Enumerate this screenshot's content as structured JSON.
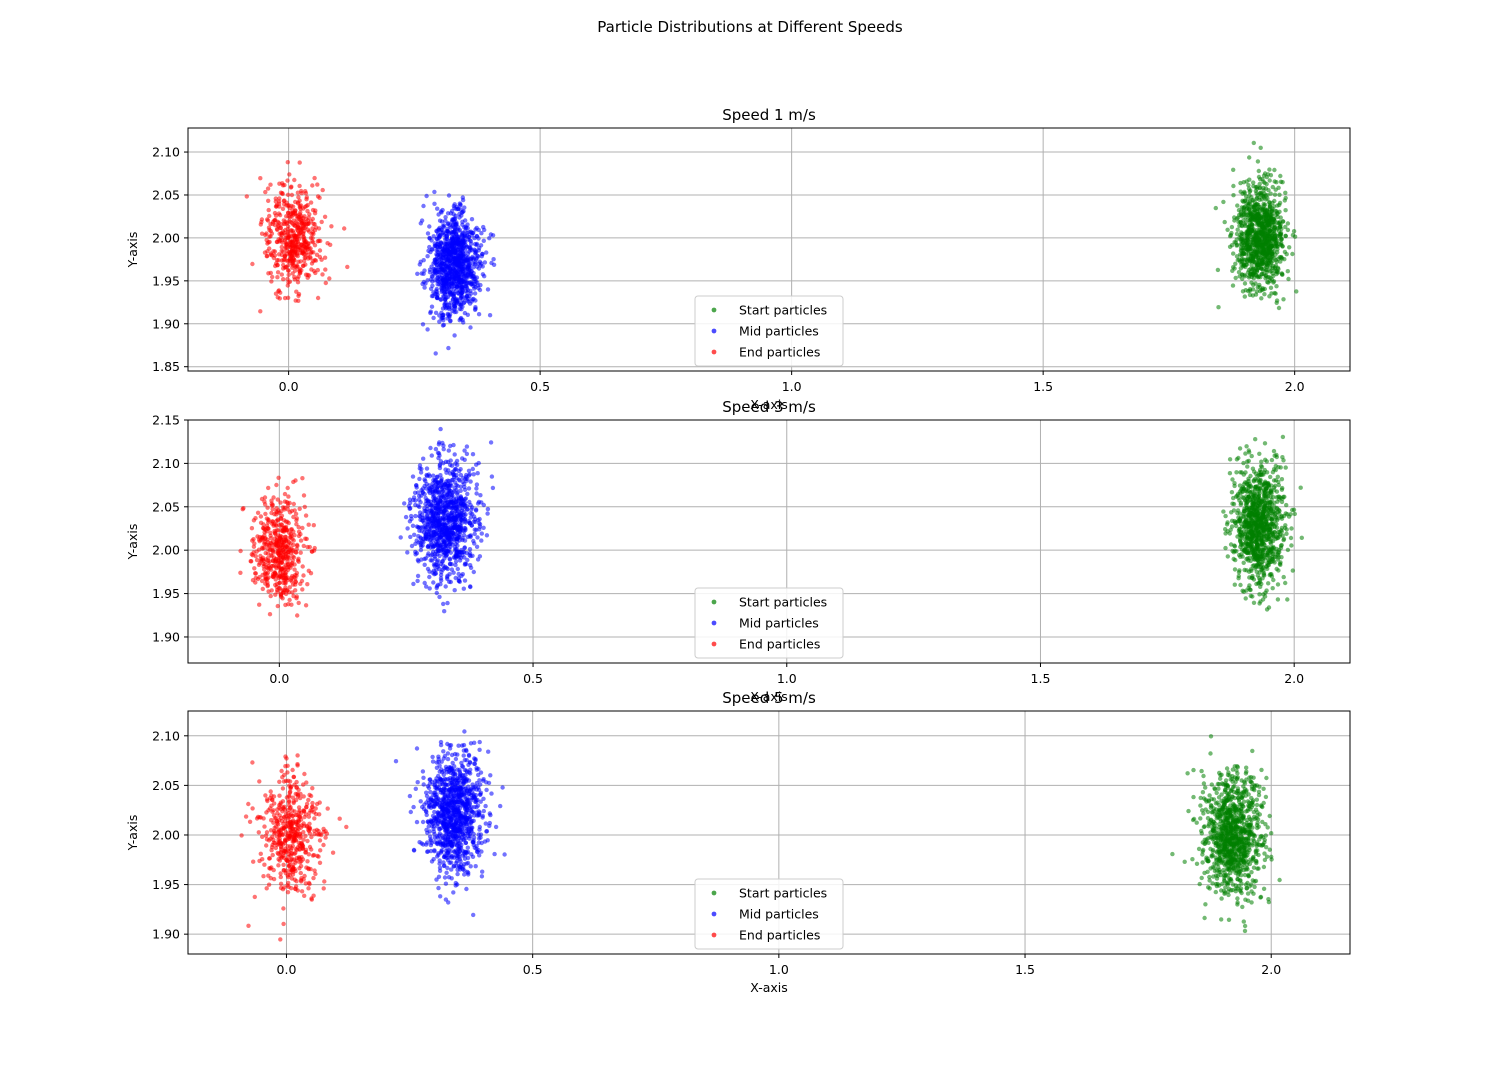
{
  "figure_title": "Particle Distributions at Different Speeds",
  "colors": {
    "start": "#008000",
    "mid": "#0000ff",
    "end": "#ff0000",
    "grid": "#b0b0b0"
  },
  "chart_data": [
    {
      "type": "scatter",
      "title": "Speed 1 m/s",
      "xlabel": "X-axis",
      "ylabel": "Y-axis",
      "xlim": [
        -0.2,
        2.11
      ],
      "ylim": [
        1.845,
        2.128
      ],
      "xticks": [
        0.0,
        0.5,
        1.0,
        1.5,
        2.0
      ],
      "xtick_labels": [
        "0.0",
        "0.5",
        "1.0",
        "1.5",
        "2.0"
      ],
      "yticks": [
        1.85,
        1.9,
        1.95,
        2.0,
        2.05,
        2.1
      ],
      "ytick_labels": [
        "1.85",
        "1.90",
        "1.95",
        "2.00",
        "2.05",
        "2.10"
      ],
      "grid": true,
      "legend_position": "lower-center",
      "series": [
        {
          "name": "Start particles",
          "color": "green",
          "center_x": 1.93,
          "center_y": 2.0,
          "std_x": 0.025,
          "std_y": 0.03,
          "count": 1000
        },
        {
          "name": "Mid particles",
          "color": "blue",
          "center_x": 0.33,
          "center_y": 1.97,
          "std_x": 0.025,
          "std_y": 0.03,
          "count": 1000
        },
        {
          "name": "End particles",
          "color": "red",
          "center_x": 0.01,
          "center_y": 2.0,
          "std_x": 0.03,
          "std_y": 0.03,
          "count": 500
        }
      ]
    },
    {
      "type": "scatter",
      "title": "Speed 3 m/s",
      "xlabel": "X-axis",
      "ylabel": "Y-axis",
      "xlim": [
        -0.18,
        2.11
      ],
      "ylim": [
        1.87,
        2.15
      ],
      "xticks": [
        0.0,
        0.5,
        1.0,
        1.5,
        2.0
      ],
      "xtick_labels": [
        "0.0",
        "0.5",
        "1.0",
        "1.5",
        "2.0"
      ],
      "yticks": [
        1.9,
        1.95,
        2.0,
        2.05,
        2.1,
        2.15
      ],
      "ytick_labels": [
        "1.90",
        "1.95",
        "2.00",
        "2.05",
        "2.10",
        "2.15"
      ],
      "grid": true,
      "legend_position": "lower-center",
      "series": [
        {
          "name": "Start particles",
          "color": "green",
          "center_x": 1.93,
          "center_y": 2.03,
          "std_x": 0.025,
          "std_y": 0.035,
          "count": 1000
        },
        {
          "name": "Mid particles",
          "color": "blue",
          "center_x": 0.33,
          "center_y": 2.035,
          "std_x": 0.03,
          "std_y": 0.035,
          "count": 1000
        },
        {
          "name": "End particles",
          "color": "red",
          "center_x": 0.0,
          "center_y": 2.0,
          "std_x": 0.025,
          "std_y": 0.03,
          "count": 500
        }
      ]
    },
    {
      "type": "scatter",
      "title": "Speed 5 m/s",
      "xlabel": "X-axis",
      "ylabel": "Y-axis",
      "xlim": [
        -0.2,
        2.16
      ],
      "ylim": [
        1.88,
        2.125
      ],
      "xticks": [
        0.0,
        0.5,
        1.0,
        1.5,
        2.0
      ],
      "xtick_labels": [
        "0.0",
        "0.5",
        "1.0",
        "1.5",
        "2.0"
      ],
      "yticks": [
        1.9,
        1.95,
        2.0,
        2.05,
        2.1
      ],
      "ytick_labels": [
        "1.90",
        "1.95",
        "2.00",
        "2.05",
        "2.10"
      ],
      "grid": true,
      "legend_position": "lower-center",
      "series": [
        {
          "name": "Start particles",
          "color": "green",
          "center_x": 1.92,
          "center_y": 2.0,
          "std_x": 0.03,
          "std_y": 0.03,
          "count": 1000
        },
        {
          "name": "Mid particles",
          "color": "blue",
          "center_x": 0.34,
          "center_y": 2.02,
          "std_x": 0.03,
          "std_y": 0.03,
          "count": 1000
        },
        {
          "name": "End particles",
          "color": "red",
          "center_x": 0.01,
          "center_y": 2.0,
          "std_x": 0.03,
          "std_y": 0.03,
          "count": 500
        }
      ]
    }
  ]
}
